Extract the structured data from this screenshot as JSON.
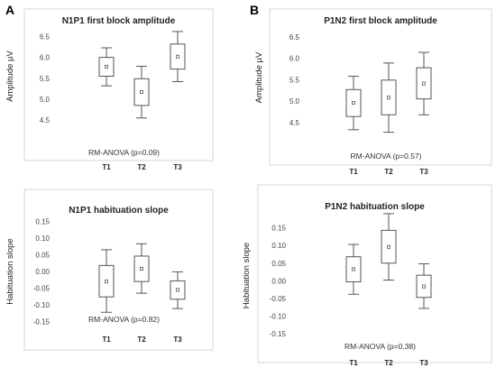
{
  "panel_letters": [
    "A",
    "B"
  ],
  "chart_data": [
    {
      "type": "box",
      "title": "N1P1 first block amplitude",
      "xlabel": "",
      "ylabel": "Amplitude µV",
      "ylim": [
        4.2,
        6.9
      ],
      "yticks": [
        4.5,
        5.0,
        5.5,
        6.0,
        6.5
      ],
      "ytick_labels": [
        "4.5",
        "5.0",
        "5.5",
        "6.0",
        "6.5"
      ],
      "categories": [
        "T1",
        "T2",
        "T3"
      ],
      "boxes": [
        {
          "whisker_low": 5.32,
          "q1": 5.55,
          "mean": 5.78,
          "q3": 6.0,
          "whisker_high": 6.23
        },
        {
          "whisker_low": 4.55,
          "q1": 4.85,
          "mean": 5.17,
          "q3": 5.49,
          "whisker_high": 5.79
        },
        {
          "whisker_low": 5.42,
          "q1": 5.72,
          "mean": 6.02,
          "q3": 6.32,
          "whisker_high": 6.62
        }
      ],
      "annotation": "RM-ANOVA (p=0.09)",
      "grid": false
    },
    {
      "type": "box",
      "title": "P1N2 first block amplitude",
      "xlabel": "",
      "ylabel": "Amplitude µV",
      "ylim": [
        4.2,
        6.9
      ],
      "yticks": [
        4.5,
        5.0,
        5.5,
        6.0,
        6.5
      ],
      "ytick_labels": [
        "4.5",
        "5.0",
        "5.5",
        "6.0",
        "6.5"
      ],
      "categories": [
        "T1",
        "T2",
        "T3"
      ],
      "boxes": [
        {
          "whisker_low": 4.33,
          "q1": 4.64,
          "mean": 4.96,
          "q3": 5.27,
          "whisker_high": 5.58
        },
        {
          "whisker_low": 4.27,
          "q1": 4.68,
          "mean": 5.08,
          "q3": 5.49,
          "whisker_high": 5.89
        },
        {
          "whisker_low": 4.68,
          "q1": 5.05,
          "mean": 5.41,
          "q3": 5.78,
          "whisker_high": 6.14
        }
      ],
      "annotation": "RM-ANOVA (p=0.57)",
      "grid": false
    },
    {
      "type": "box",
      "title": "N1P1 habituation slope",
      "xlabel": "",
      "ylabel": "Habituation slope",
      "ylim": [
        -0.17,
        0.17
      ],
      "yticks": [
        -0.15,
        -0.1,
        -0.05,
        0.0,
        0.05,
        0.1,
        0.15
      ],
      "ytick_labels": [
        "-0.15",
        "-0.10",
        "-0.05",
        "0.00",
        "0.05",
        "0.10",
        "0.15"
      ],
      "categories": [
        "T1",
        "T2",
        "T3"
      ],
      "boxes": [
        {
          "whisker_low": -0.122,
          "q1": -0.076,
          "mean": -0.03,
          "q3": 0.018,
          "whisker_high": 0.065
        },
        {
          "whisker_low": -0.065,
          "q1": -0.03,
          "mean": 0.008,
          "q3": 0.046,
          "whisker_high": 0.083
        },
        {
          "whisker_low": -0.111,
          "q1": -0.083,
          "mean": -0.055,
          "q3": -0.028,
          "whisker_high": -0.001
        }
      ],
      "annotation": "RM-ANOVA (p=0.82)",
      "grid": false
    },
    {
      "type": "box",
      "title": "P1N2 habituation slope",
      "xlabel": "",
      "ylabel": "Habituation slope",
      "ylim": [
        -0.17,
        0.2
      ],
      "yticks": [
        -0.15,
        -0.1,
        -0.05,
        0.0,
        0.05,
        0.1,
        0.15
      ],
      "ytick_labels": [
        "-0.15",
        "-0.10",
        "-0.05",
        "0.00",
        "0.05",
        "0.10",
        "0.15"
      ],
      "categories": [
        "T1",
        "T2",
        "T3"
      ],
      "boxes": [
        {
          "whisker_low": -0.038,
          "q1": -0.003,
          "mean": 0.033,
          "q3": 0.068,
          "whisker_high": 0.103
        },
        {
          "whisker_low": 0.002,
          "q1": 0.05,
          "mean": 0.096,
          "q3": 0.143,
          "whisker_high": 0.19
        },
        {
          "whisker_low": -0.078,
          "q1": -0.047,
          "mean": -0.016,
          "q3": 0.016,
          "whisker_high": 0.048
        }
      ],
      "annotation": "RM-ANOVA (p=0.38)",
      "grid": false
    }
  ]
}
